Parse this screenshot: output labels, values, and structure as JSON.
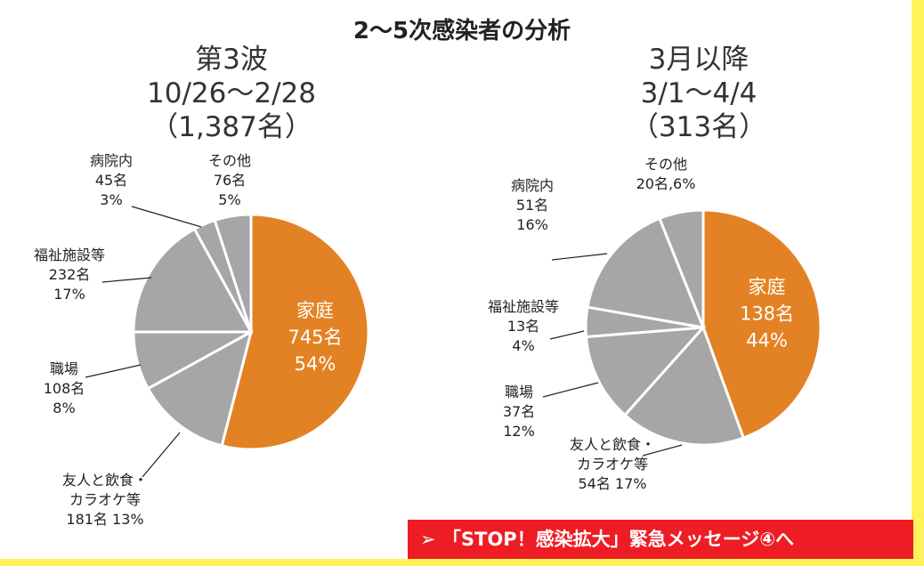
{
  "title": "2～5次感染者の分析",
  "chart_data": [
    {
      "type": "pie",
      "heading": [
        "第3波",
        "10/26～2/28",
        "（1,387名）"
      ],
      "slices": [
        {
          "label": "家庭",
          "count": "745名",
          "percent": "54%",
          "value": 54,
          "color": "#e38224"
        },
        {
          "label": "友人と飲食・カラオケ等",
          "count": "181名",
          "percent": "13%",
          "value": 13,
          "color": "#a6a6a6"
        },
        {
          "label": "職場",
          "count": "108名",
          "percent": "8%",
          "value": 8,
          "color": "#a6a6a6"
        },
        {
          "label": "福祉施設等",
          "count": "232名",
          "percent": "17%",
          "value": 17,
          "color": "#a6a6a6"
        },
        {
          "label": "病院内",
          "count": "45名",
          "percent": "3%",
          "value": 3,
          "color": "#a6a6a6"
        },
        {
          "label": "その他",
          "count": "76名",
          "percent": "5%",
          "value": 5,
          "color": "#a6a6a6"
        }
      ],
      "callouts": [
        [
          "病院内",
          "45名",
          "3%"
        ],
        [
          "その他",
          "76名",
          "5%"
        ],
        [
          "福祉施設等",
          "232名",
          "17%"
        ],
        [
          "職場",
          "108名",
          "8%"
        ],
        [
          "友人と飲食・",
          "カラオケ等",
          "181名  13%"
        ]
      ]
    },
    {
      "type": "pie",
      "heading": [
        "3月以降",
        "3/1～4/4",
        "（313名）"
      ],
      "slices": [
        {
          "label": "家庭",
          "count": "138名",
          "percent": "44%",
          "value": 44,
          "color": "#e38224"
        },
        {
          "label": "友人と飲食・カラオケ等",
          "count": "54名",
          "percent": "17%",
          "value": 17,
          "color": "#a6a6a6"
        },
        {
          "label": "職場",
          "count": "37名",
          "percent": "12%",
          "value": 12,
          "color": "#a6a6a6"
        },
        {
          "label": "福祉施設等",
          "count": "13名",
          "percent": "4%",
          "value": 4,
          "color": "#a6a6a6"
        },
        {
          "label": "病院内",
          "count": "51名",
          "percent": "16%",
          "value": 16,
          "color": "#a6a6a6"
        },
        {
          "label": "その他",
          "count": "20名",
          "percent": "6%",
          "value": 6,
          "color": "#a6a6a6"
        }
      ],
      "callouts": [
        [
          "病院内",
          "51名",
          "16%"
        ],
        [
          "その他",
          "20名,6%"
        ],
        [
          "福祉施設等",
          "13名",
          "4%"
        ],
        [
          "職場",
          "37名",
          "12%"
        ],
        [
          "友人と飲食・",
          "カラオケ等",
          "54名  17%"
        ]
      ]
    }
  ],
  "cta": {
    "arrow": "➢",
    "text": "「STOP！感染拡大」緊急メッセージ④へ"
  }
}
